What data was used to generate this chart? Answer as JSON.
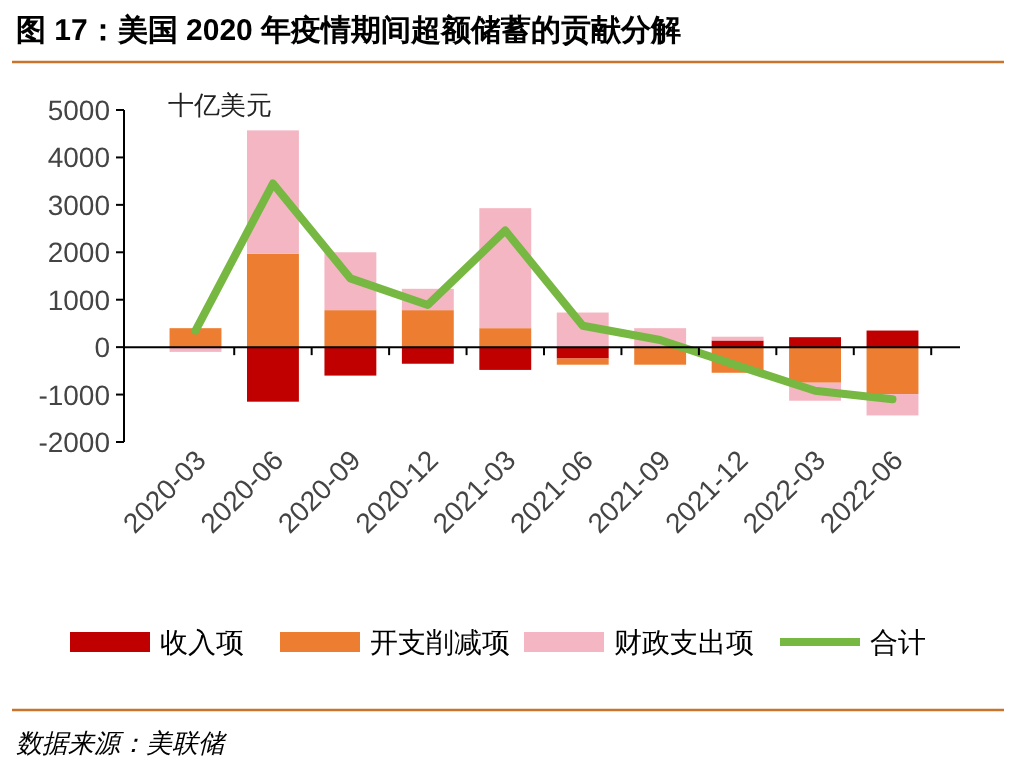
{
  "chart_data": {
    "type": "bar",
    "title": "图 17：美国 2020 年疫情期间超额储蓄的贡献分解",
    "ylabel": "十亿美元",
    "categories": [
      "2020-03",
      "2020-06",
      "2020-09",
      "2020-12",
      "2021-03",
      "2021-06",
      "2021-09",
      "2021-12",
      "2022-03",
      "2022-06"
    ],
    "stacked": true,
    "series": [
      {
        "name": "收入项",
        "color": "#c00000",
        "values": [
          0,
          -1150,
          -600,
          -350,
          -480,
          -240,
          0,
          140,
          210,
          350
        ]
      },
      {
        "name": "开支削减项",
        "color": "#ed7d31",
        "values": [
          400,
          1970,
          780,
          780,
          400,
          -130,
          -370,
          -540,
          -750,
          -990
        ]
      },
      {
        "name": "财政支出项",
        "color": "#f4b6c2",
        "values": [
          -100,
          2600,
          1220,
          450,
          2530,
          730,
          400,
          80,
          -380,
          -450
        ]
      },
      {
        "name": "合计",
        "type": "line",
        "color": "#77b843",
        "values": [
          350,
          3450,
          1450,
          890,
          2460,
          450,
          150,
          -390,
          -920,
          -1100
        ]
      }
    ],
    "ylim": [
      -2000,
      5000
    ],
    "yticks": [
      -2000,
      -1000,
      0,
      1000,
      2000,
      3000,
      4000,
      5000
    ],
    "legend": "bottom",
    "annotations": [
      "数据来源：美联储"
    ]
  }
}
